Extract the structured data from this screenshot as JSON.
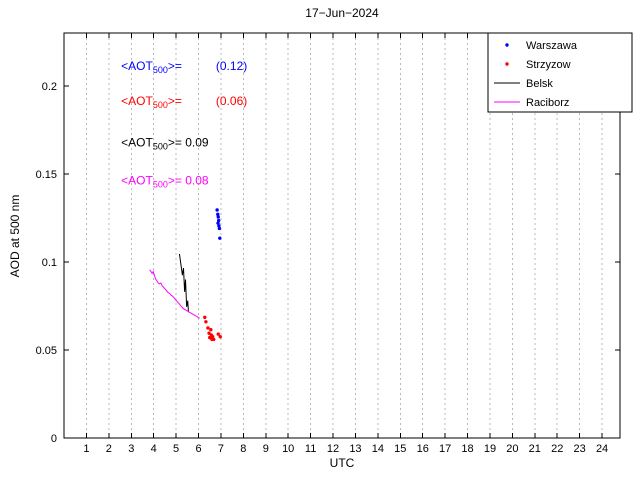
{
  "chart_data": {
    "type": "scatter",
    "title": "17−Jun−2024",
    "xlabel": "UTC",
    "ylabel": "AOD at 500 nm",
    "xlim": [
      0,
      24.8
    ],
    "ylim": [
      0,
      0.23
    ],
    "xticks": [
      1,
      2,
      3,
      4,
      5,
      6,
      7,
      8,
      9,
      10,
      11,
      12,
      13,
      14,
      15,
      16,
      17,
      18,
      19,
      20,
      21,
      22,
      23,
      24
    ],
    "yticks": [
      0,
      0.05,
      0.1,
      0.15,
      0.2
    ],
    "grid": "vertical-dashed",
    "legend_position": "top-right",
    "series": [
      {
        "name": "Warszawa",
        "type": "scatter",
        "color": "#0000ff",
        "points": [
          [
            6.83,
            0.1295
          ],
          [
            6.86,
            0.127
          ],
          [
            6.88,
            0.1255
          ],
          [
            6.9,
            0.1235
          ],
          [
            6.87,
            0.122
          ],
          [
            6.91,
            0.1205
          ],
          [
            6.93,
            0.119
          ],
          [
            6.95,
            0.1135
          ]
        ]
      },
      {
        "name": "Strzyzow",
        "type": "scatter",
        "color": "#ff0000",
        "points": [
          [
            6.28,
            0.0685
          ],
          [
            6.33,
            0.066
          ],
          [
            6.42,
            0.0625
          ],
          [
            6.47,
            0.0595
          ],
          [
            6.5,
            0.057
          ],
          [
            6.55,
            0.0615
          ],
          [
            6.57,
            0.0585
          ],
          [
            6.6,
            0.056
          ],
          [
            6.63,
            0.0575
          ],
          [
            6.68,
            0.056
          ],
          [
            6.88,
            0.059
          ],
          [
            6.97,
            0.0575
          ]
        ]
      },
      {
        "name": "Belsk",
        "type": "line",
        "color": "#000000",
        "points": [
          [
            5.15,
            0.1045
          ],
          [
            5.28,
            0.0925
          ],
          [
            5.33,
            0.0965
          ],
          [
            5.38,
            0.083
          ],
          [
            5.42,
            0.09
          ],
          [
            5.47,
            0.0745
          ],
          [
            5.52,
            0.078
          ],
          [
            5.55,
            0.0715
          ]
        ]
      },
      {
        "name": "Raciborz",
        "type": "line",
        "color": "#ff00ff",
        "points": [
          [
            3.82,
            0.0955
          ],
          [
            3.88,
            0.0945
          ],
          [
            3.93,
            0.0935
          ],
          [
            3.98,
            0.0945
          ],
          [
            4.03,
            0.0925
          ],
          [
            4.08,
            0.0905
          ],
          [
            4.13,
            0.0895
          ],
          [
            4.18,
            0.0885
          ],
          [
            4.25,
            0.0875
          ],
          [
            4.32,
            0.088
          ],
          [
            4.38,
            0.0865
          ],
          [
            4.45,
            0.0855
          ],
          [
            4.52,
            0.0845
          ],
          [
            4.58,
            0.0835
          ],
          [
            4.65,
            0.0825
          ],
          [
            4.72,
            0.082
          ],
          [
            4.78,
            0.081
          ],
          [
            4.85,
            0.0805
          ],
          [
            4.92,
            0.0795
          ],
          [
            4.98,
            0.0785
          ],
          [
            5.05,
            0.0775
          ],
          [
            5.12,
            0.0765
          ],
          [
            5.18,
            0.0755
          ],
          [
            5.25,
            0.0745
          ],
          [
            5.32,
            0.0735
          ],
          [
            5.38,
            0.073
          ],
          [
            5.45,
            0.0725
          ],
          [
            5.52,
            0.072
          ],
          [
            5.58,
            0.0715
          ],
          [
            5.65,
            0.071
          ],
          [
            5.72,
            0.0705
          ],
          [
            5.78,
            0.07
          ],
          [
            5.85,
            0.0695
          ],
          [
            5.92,
            0.069
          ],
          [
            5.98,
            0.0685
          ],
          [
            6.05,
            0.068
          ]
        ]
      }
    ],
    "annotations": [
      {
        "name": "warszawa-mean",
        "color": "#0000ff",
        "x": 2.55,
        "y": 0.209,
        "parts": [
          {
            "t": "<AOT"
          },
          {
            "t": "500",
            "sub": true
          },
          {
            "t": ">="
          },
          {
            "t": "(0.12)",
            "dx": 34
          }
        ]
      },
      {
        "name": "strzyzow-mean",
        "color": "#ff0000",
        "x": 2.55,
        "y": 0.189,
        "parts": [
          {
            "t": "<AOT"
          },
          {
            "t": "500",
            "sub": true
          },
          {
            "t": ">="
          },
          {
            "t": "(0.06)",
            "dx": 34
          }
        ]
      },
      {
        "name": "belsk-mean",
        "color": "#000000",
        "x": 2.55,
        "y": 0.1655,
        "parts": [
          {
            "t": "<AOT"
          },
          {
            "t": "500",
            "sub": true
          },
          {
            "t": ">= 0.09"
          }
        ]
      },
      {
        "name": "raciborz-mean",
        "color": "#ff00ff",
        "x": 2.55,
        "y": 0.144,
        "parts": [
          {
            "t": "<AOT"
          },
          {
            "t": "500",
            "sub": true
          },
          {
            "t": ">= 0.08"
          }
        ]
      }
    ]
  }
}
